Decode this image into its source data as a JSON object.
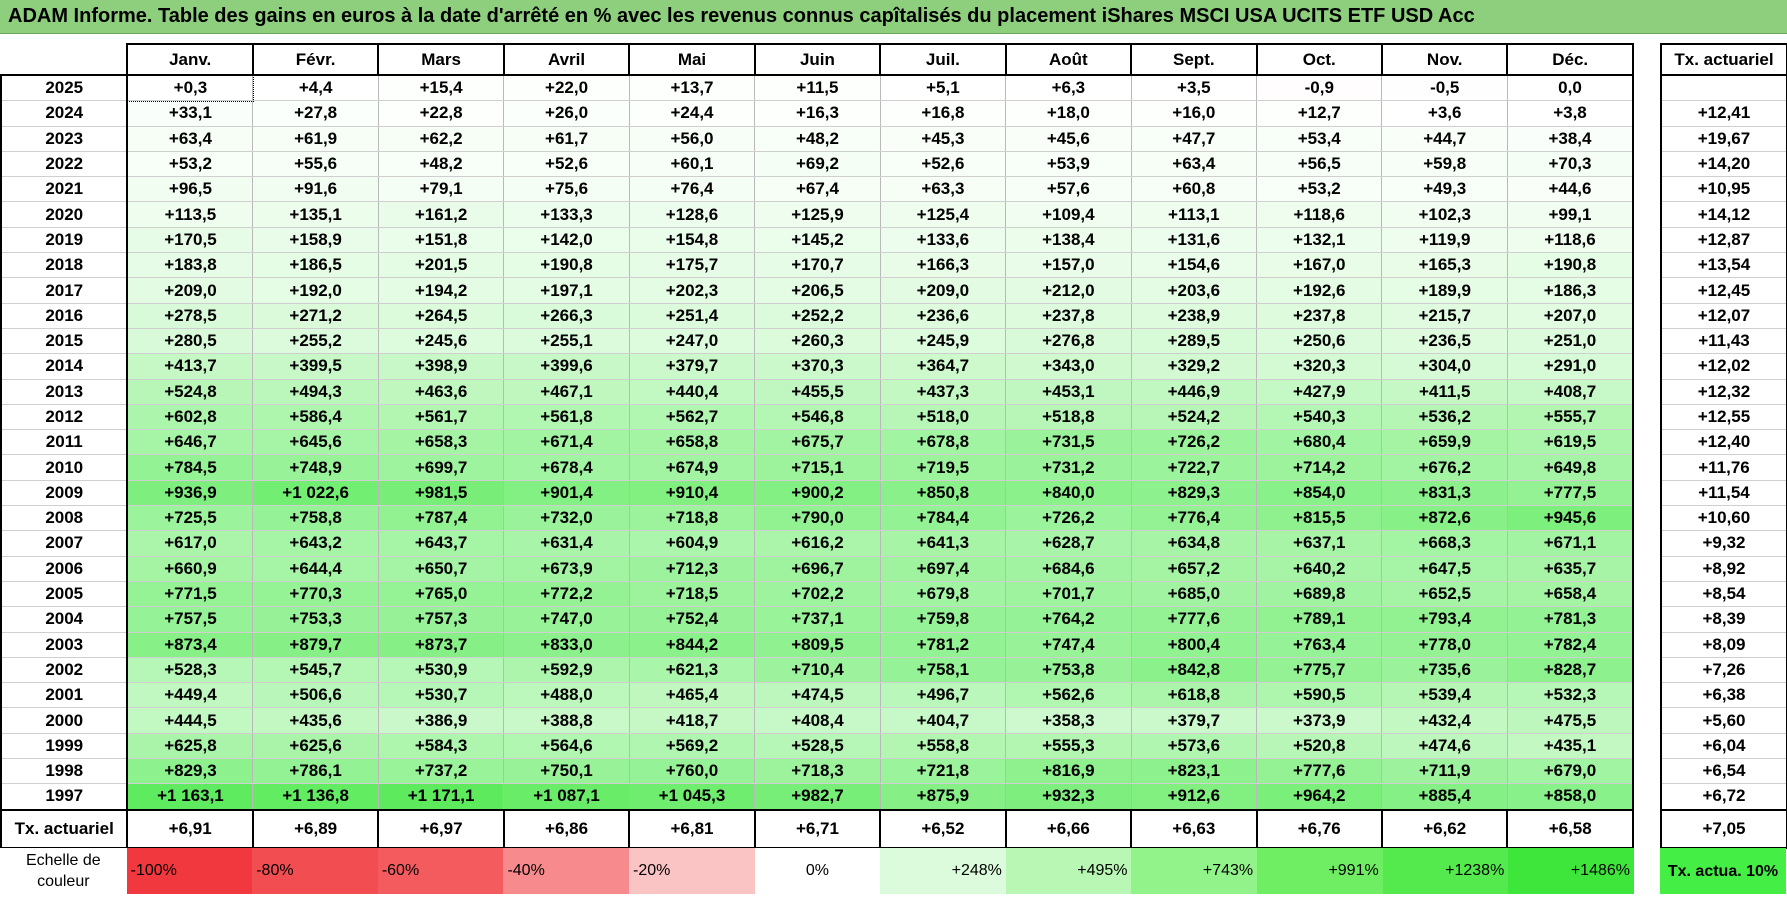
{
  "title": "ADAM Informe. Table des gains en euros à la date d'arrêté en % avec les revenus connus capîtalisés du placement iShares MSCI USA UCITS ETF USD Acc",
  "months": [
    "Janv.",
    "Févr.",
    "Mars",
    "Avril",
    "Mai",
    "Juin",
    "Juil.",
    "Août",
    "Sept.",
    "Oct.",
    "Nov.",
    "Déc."
  ],
  "rate_header": "Tx. actuariel",
  "rows": [
    {
      "year": "2025",
      "values": [
        "+0,3",
        "+4,4",
        "+15,4",
        "+22,0",
        "+13,7",
        "+11,5",
        "+5,1",
        "+6,3",
        "+3,5",
        "-0,9",
        "-0,5",
        "0,0"
      ],
      "rate": ""
    },
    {
      "year": "2024",
      "values": [
        "+33,1",
        "+27,8",
        "+22,8",
        "+26,0",
        "+24,4",
        "+16,3",
        "+16,8",
        "+18,0",
        "+16,0",
        "+12,7",
        "+3,6",
        "+3,8"
      ],
      "rate": "+12,41"
    },
    {
      "year": "2023",
      "values": [
        "+63,4",
        "+61,9",
        "+62,2",
        "+61,7",
        "+56,0",
        "+48,2",
        "+45,3",
        "+45,6",
        "+47,7",
        "+53,4",
        "+44,7",
        "+38,4"
      ],
      "rate": "+19,67"
    },
    {
      "year": "2022",
      "values": [
        "+53,2",
        "+55,6",
        "+48,2",
        "+52,6",
        "+60,1",
        "+69,2",
        "+52,6",
        "+53,9",
        "+63,4",
        "+56,5",
        "+59,8",
        "+70,3"
      ],
      "rate": "+14,20"
    },
    {
      "year": "2021",
      "values": [
        "+96,5",
        "+91,6",
        "+79,1",
        "+75,6",
        "+76,4",
        "+67,4",
        "+63,3",
        "+57,6",
        "+60,8",
        "+53,2",
        "+49,3",
        "+44,6"
      ],
      "rate": "+10,95"
    },
    {
      "year": "2020",
      "values": [
        "+113,5",
        "+135,1",
        "+161,2",
        "+133,3",
        "+128,6",
        "+125,9",
        "+125,4",
        "+109,4",
        "+113,1",
        "+118,6",
        "+102,3",
        "+99,1"
      ],
      "rate": "+14,12"
    },
    {
      "year": "2019",
      "values": [
        "+170,5",
        "+158,9",
        "+151,8",
        "+142,0",
        "+154,8",
        "+145,2",
        "+133,6",
        "+138,4",
        "+131,6",
        "+132,1",
        "+119,9",
        "+118,6"
      ],
      "rate": "+12,87"
    },
    {
      "year": "2018",
      "values": [
        "+183,8",
        "+186,5",
        "+201,5",
        "+190,8",
        "+175,7",
        "+170,7",
        "+166,3",
        "+157,0",
        "+154,6",
        "+167,0",
        "+165,3",
        "+190,8"
      ],
      "rate": "+13,54"
    },
    {
      "year": "2017",
      "values": [
        "+209,0",
        "+192,0",
        "+194,2",
        "+197,1",
        "+202,3",
        "+206,5",
        "+209,0",
        "+212,0",
        "+203,6",
        "+192,6",
        "+189,9",
        "+186,3"
      ],
      "rate": "+12,45"
    },
    {
      "year": "2016",
      "values": [
        "+278,5",
        "+271,2",
        "+264,5",
        "+266,3",
        "+251,4",
        "+252,2",
        "+236,6",
        "+237,8",
        "+238,9",
        "+237,8",
        "+215,7",
        "+207,0"
      ],
      "rate": "+12,07"
    },
    {
      "year": "2015",
      "values": [
        "+280,5",
        "+255,2",
        "+245,6",
        "+255,1",
        "+247,0",
        "+260,3",
        "+245,9",
        "+276,8",
        "+289,5",
        "+250,6",
        "+236,5",
        "+251,0"
      ],
      "rate": "+11,43"
    },
    {
      "year": "2014",
      "values": [
        "+413,7",
        "+399,5",
        "+398,9",
        "+399,6",
        "+379,7",
        "+370,3",
        "+364,7",
        "+343,0",
        "+329,2",
        "+320,3",
        "+304,0",
        "+291,0"
      ],
      "rate": "+12,02"
    },
    {
      "year": "2013",
      "values": [
        "+524,8",
        "+494,3",
        "+463,6",
        "+467,1",
        "+440,4",
        "+455,5",
        "+437,3",
        "+453,1",
        "+446,9",
        "+427,9",
        "+411,5",
        "+408,7"
      ],
      "rate": "+12,32"
    },
    {
      "year": "2012",
      "values": [
        "+602,8",
        "+586,4",
        "+561,7",
        "+561,8",
        "+562,7",
        "+546,8",
        "+518,0",
        "+518,8",
        "+524,2",
        "+540,3",
        "+536,2",
        "+555,7"
      ],
      "rate": "+12,55"
    },
    {
      "year": "2011",
      "values": [
        "+646,7",
        "+645,6",
        "+658,3",
        "+671,4",
        "+658,8",
        "+675,7",
        "+678,8",
        "+731,5",
        "+726,2",
        "+680,4",
        "+659,9",
        "+619,5"
      ],
      "rate": "+12,40"
    },
    {
      "year": "2010",
      "values": [
        "+784,5",
        "+748,9",
        "+699,7",
        "+678,4",
        "+674,9",
        "+715,1",
        "+719,5",
        "+731,2",
        "+722,7",
        "+714,2",
        "+676,2",
        "+649,8"
      ],
      "rate": "+11,76"
    },
    {
      "year": "2009",
      "values": [
        "+936,9",
        "+1 022,6",
        "+981,5",
        "+901,4",
        "+910,4",
        "+900,2",
        "+850,8",
        "+840,0",
        "+829,3",
        "+854,0",
        "+831,3",
        "+777,5"
      ],
      "rate": "+11,54"
    },
    {
      "year": "2008",
      "values": [
        "+725,5",
        "+758,8",
        "+787,4",
        "+732,0",
        "+718,8",
        "+790,0",
        "+784,4",
        "+726,2",
        "+776,4",
        "+815,5",
        "+872,6",
        "+945,6"
      ],
      "rate": "+10,60"
    },
    {
      "year": "2007",
      "values": [
        "+617,0",
        "+643,2",
        "+643,7",
        "+631,4",
        "+604,9",
        "+616,2",
        "+641,3",
        "+628,7",
        "+634,8",
        "+637,1",
        "+668,3",
        "+671,1"
      ],
      "rate": "+9,32"
    },
    {
      "year": "2006",
      "values": [
        "+660,9",
        "+644,4",
        "+650,7",
        "+673,9",
        "+712,3",
        "+696,7",
        "+697,4",
        "+684,6",
        "+657,2",
        "+640,2",
        "+647,5",
        "+635,7"
      ],
      "rate": "+8,92"
    },
    {
      "year": "2005",
      "values": [
        "+771,5",
        "+770,3",
        "+765,0",
        "+772,2",
        "+718,5",
        "+702,2",
        "+679,8",
        "+701,7",
        "+685,0",
        "+689,8",
        "+652,5",
        "+658,4"
      ],
      "rate": "+8,54"
    },
    {
      "year": "2004",
      "values": [
        "+757,5",
        "+753,3",
        "+757,3",
        "+747,0",
        "+752,4",
        "+737,1",
        "+759,8",
        "+764,2",
        "+777,6",
        "+789,1",
        "+793,4",
        "+781,3"
      ],
      "rate": "+8,39"
    },
    {
      "year": "2003",
      "values": [
        "+873,4",
        "+879,7",
        "+873,7",
        "+833,0",
        "+844,2",
        "+809,5",
        "+781,2",
        "+747,4",
        "+800,4",
        "+763,4",
        "+778,0",
        "+782,4"
      ],
      "rate": "+8,09"
    },
    {
      "year": "2002",
      "values": [
        "+528,3",
        "+545,7",
        "+530,9",
        "+592,9",
        "+621,3",
        "+710,4",
        "+758,1",
        "+753,8",
        "+842,8",
        "+775,7",
        "+735,6",
        "+828,7"
      ],
      "rate": "+7,26"
    },
    {
      "year": "2001",
      "values": [
        "+449,4",
        "+506,6",
        "+530,7",
        "+488,0",
        "+465,4",
        "+474,5",
        "+496,7",
        "+562,6",
        "+618,8",
        "+590,5",
        "+539,4",
        "+532,3"
      ],
      "rate": "+6,38"
    },
    {
      "year": "2000",
      "values": [
        "+444,5",
        "+435,6",
        "+386,9",
        "+388,8",
        "+418,7",
        "+408,4",
        "+404,7",
        "+358,3",
        "+379,7",
        "+373,9",
        "+432,4",
        "+475,5"
      ],
      "rate": "+5,60"
    },
    {
      "year": "1999",
      "values": [
        "+625,8",
        "+625,6",
        "+584,3",
        "+564,6",
        "+569,2",
        "+528,5",
        "+558,8",
        "+555,3",
        "+573,6",
        "+520,8",
        "+474,6",
        "+435,1"
      ],
      "rate": "+6,04"
    },
    {
      "year": "1998",
      "values": [
        "+829,3",
        "+786,1",
        "+737,2",
        "+750,1",
        "+760,0",
        "+718,3",
        "+721,8",
        "+816,9",
        "+823,1",
        "+777,6",
        "+711,9",
        "+679,0"
      ],
      "rate": "+6,54"
    },
    {
      "year": "1997",
      "values": [
        "+1 163,1",
        "+1 136,8",
        "+1 171,1",
        "+1 087,1",
        "+1 045,3",
        "+982,7",
        "+875,9",
        "+932,3",
        "+912,6",
        "+964,2",
        "+885,4",
        "+858,0"
      ],
      "rate": "+6,72"
    }
  ],
  "footer": {
    "label": "Tx. actuariel",
    "values": [
      "+6,91",
      "+6,89",
      "+6,97",
      "+6,86",
      "+6,81",
      "+6,71",
      "+6,52",
      "+6,66",
      "+6,63",
      "+6,76",
      "+6,62",
      "+6,58"
    ],
    "total": "+7,05"
  },
  "scale": {
    "label": "Echelle de couleur",
    "steps": [
      {
        "text": "-100%",
        "color": "#f0383e"
      },
      {
        "text": "-80%",
        "color": "#f24d50"
      },
      {
        "text": "-60%",
        "color": "#f45b5e"
      },
      {
        "text": "-40%",
        "color": "#f68a8c"
      },
      {
        "text": "-20%",
        "color": "#fac3c4"
      },
      {
        "text": "0%",
        "color": "#ffffff"
      },
      {
        "text": "+248%",
        "color": "#dcfbdc"
      },
      {
        "text": "+495%",
        "color": "#b8f7b4"
      },
      {
        "text": "+743%",
        "color": "#93f38b"
      },
      {
        "text": "+991%",
        "color": "#6fee64"
      },
      {
        "text": "+1238%",
        "color": "#54ea4d"
      },
      {
        "text": "+1486%",
        "color": "#3ee63b"
      }
    ],
    "rate_label": "Tx. actua. 10%",
    "rate_color": "#44ee44"
  }
}
